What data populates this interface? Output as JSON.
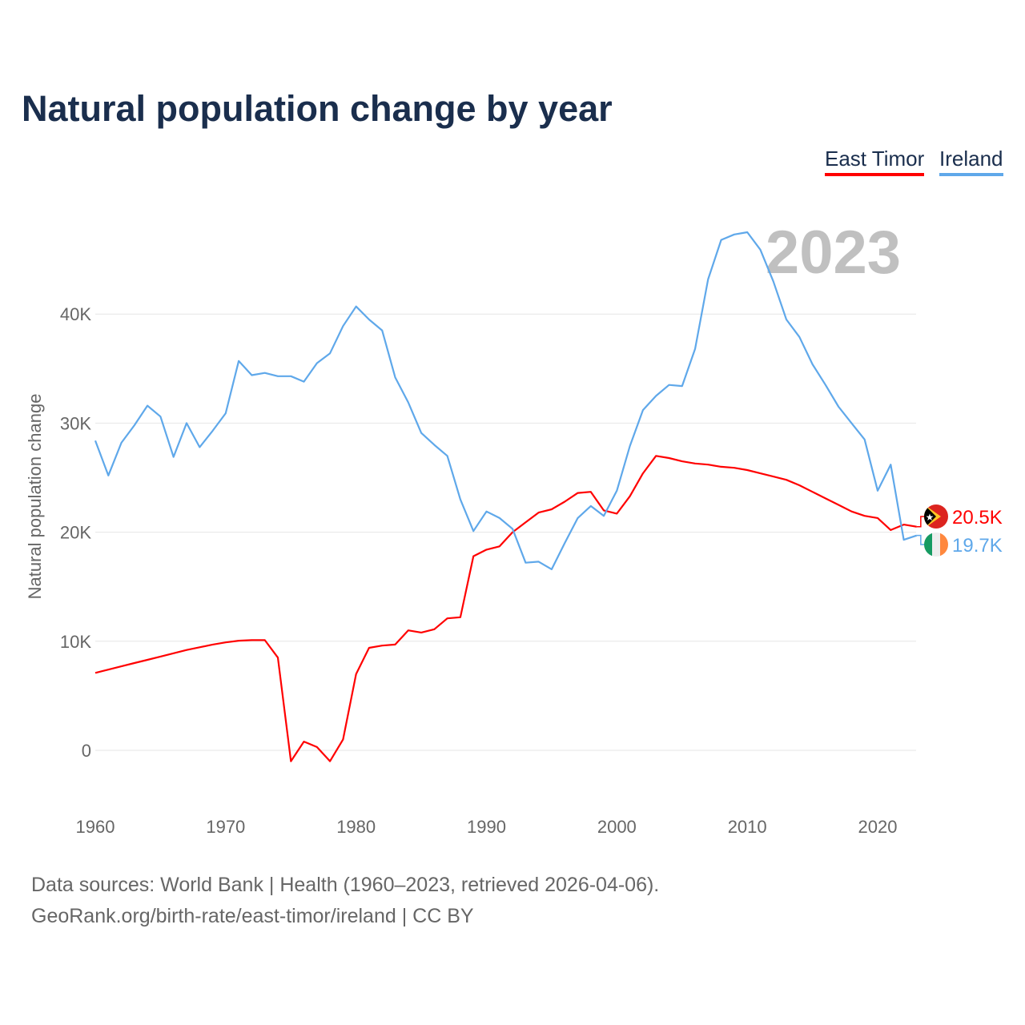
{
  "chart_data": {
    "type": "line",
    "title": "Natural population change by year",
    "xlabel": "",
    "ylabel": "Natural population change",
    "xlim": [
      1960,
      2023
    ],
    "ylim": [
      -5000,
      48000
    ],
    "grid": true,
    "legend_position": "top-right",
    "year_label": "2023",
    "x_ticks": [
      1960,
      1970,
      1980,
      1990,
      2000,
      2010,
      2020
    ],
    "x_tick_labels": [
      "1960",
      "1970",
      "1980",
      "1990",
      "2000",
      "2010",
      "2020"
    ],
    "y_ticks": [
      0,
      10000,
      20000,
      30000,
      40000
    ],
    "y_tick_labels": [
      "0",
      "10K",
      "20K",
      "30K",
      "40K"
    ],
    "x": [
      1960,
      1961,
      1962,
      1963,
      1964,
      1965,
      1966,
      1967,
      1968,
      1969,
      1970,
      1971,
      1972,
      1973,
      1974,
      1975,
      1976,
      1977,
      1978,
      1979,
      1980,
      1981,
      1982,
      1983,
      1984,
      1985,
      1986,
      1987,
      1988,
      1989,
      1990,
      1991,
      1992,
      1993,
      1994,
      1995,
      1996,
      1997,
      1998,
      1999,
      2000,
      2001,
      2002,
      2003,
      2004,
      2005,
      2006,
      2007,
      2008,
      2009,
      2010,
      2011,
      2012,
      2013,
      2014,
      2015,
      2016,
      2017,
      2018,
      2019,
      2020,
      2021,
      2022,
      2023
    ],
    "series": [
      {
        "name": "East Timor",
        "color": "#ff0000",
        "end_label": "20.5K",
        "values": [
          7100,
          7400,
          7700,
          8000,
          8300,
          8600,
          8900,
          9200,
          9450,
          9700,
          9900,
          10050,
          10100,
          10100,
          8500,
          -1000,
          800,
          300,
          -1000,
          1000,
          7000,
          9400,
          9600,
          9700,
          11000,
          10800,
          11100,
          12100,
          12200,
          17800,
          18400,
          18700,
          20000,
          20900,
          21800,
          22100,
          22800,
          23600,
          23700,
          22000,
          21700,
          23300,
          25400,
          27000,
          26800,
          26500,
          26300,
          26200,
          26000,
          25900,
          25700,
          25400,
          25100,
          24800,
          24300,
          23700,
          23100,
          22500,
          21900,
          21500,
          21300,
          20200,
          20700,
          20500
        ]
      },
      {
        "name": "Ireland",
        "color": "#5fa8ea",
        "end_label": "19.7K",
        "values": [
          28400,
          25200,
          28200,
          29800,
          31600,
          30600,
          26900,
          30000,
          27800,
          29300,
          30900,
          35700,
          34400,
          34600,
          34300,
          34300,
          33800,
          35500,
          36400,
          38900,
          40700,
          39500,
          38500,
          34200,
          31900,
          29100,
          28000,
          27000,
          23000,
          20100,
          21900,
          21300,
          20300,
          17200,
          17300,
          16600,
          19000,
          21300,
          22400,
          21500,
          23800,
          27900,
          31200,
          32500,
          33500,
          33400,
          36800,
          43200,
          46800,
          47300,
          47500,
          45900,
          43000,
          39500,
          37900,
          35400,
          33500,
          31500,
          30000,
          28500,
          23800,
          26200,
          19300,
          19700
        ]
      }
    ]
  },
  "footer": {
    "line1": "Data sources: World Bank | Health (1960–2023, retrieved 2026-04-06).",
    "line2": "GeoRank.org/birth-rate/east-timor/ireland | CC BY"
  }
}
